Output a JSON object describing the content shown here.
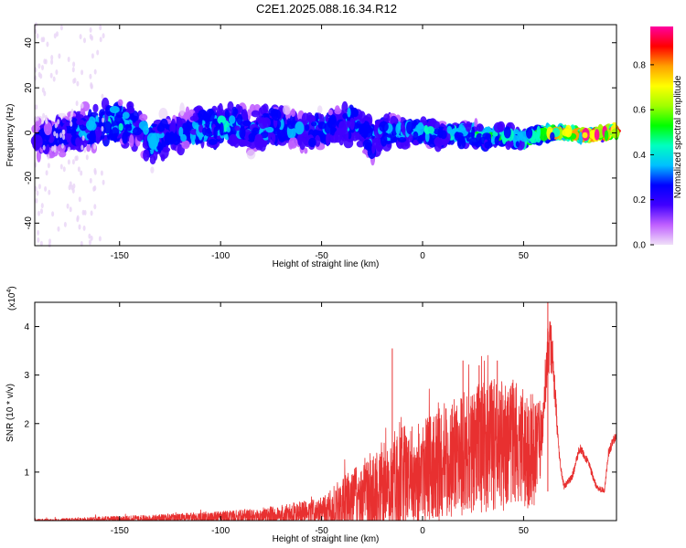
{
  "title": "C2E1.2025.088.16.34.R12",
  "chart_data": [
    {
      "type": "heatmap",
      "xlabel": "Height of straight line (km)",
      "ylabel": "Frequency (Hz)",
      "xlim": [
        -192,
        96
      ],
      "ylim": [
        -50,
        48
      ],
      "xticks": [
        -150,
        -100,
        -50,
        0,
        50
      ],
      "yticks": [
        -40,
        -20,
        0,
        20,
        40
      ],
      "colorbar": {
        "label": "Normalized spectral amplitude",
        "range": [
          0,
          0.97
        ],
        "ticks": [
          0.0,
          0.2,
          0.4,
          0.6,
          0.8
        ],
        "tick_labels": [
          "0.0",
          "0.2",
          "0.4",
          "0.6",
          "0.8"
        ],
        "colormap": [
          "#f0e0f8",
          "#c060ff",
          "#4000ff",
          "#0000ff",
          "#00c0ff",
          "#00ffc0",
          "#00ff00",
          "#a0ff00",
          "#ffff00",
          "#ffa000",
          "#ff0000",
          "#ff00a0"
        ]
      },
      "ridge": {
        "x": [
          -190,
          -175,
          -160,
          -150,
          -140,
          -135,
          -125,
          -110,
          -100,
          -95,
          -85,
          -75,
          -65,
          -55,
          -45,
          -35,
          -30,
          -25,
          -20,
          -10,
          0,
          10,
          20,
          30,
          40,
          50,
          60,
          70,
          80,
          90,
          95
        ],
        "center": [
          -3,
          0,
          3,
          5,
          2,
          -4,
          -1,
          2,
          3,
          4,
          1,
          3,
          2,
          1,
          3,
          5,
          2,
          -3,
          1,
          0,
          1,
          -1,
          0,
          -2,
          -1,
          -3,
          0,
          0,
          -1,
          0,
          1
        ],
        "spread": [
          10,
          10,
          11,
          12,
          10,
          14,
          9,
          10,
          11,
          12,
          10,
          11,
          9,
          9,
          10,
          11,
          10,
          13,
          8,
          7,
          7,
          6,
          6,
          6,
          5,
          4,
          3,
          2,
          2,
          2,
          2
        ],
        "peak_amplitude": [
          0.25,
          0.3,
          0.35,
          0.4,
          0.3,
          0.35,
          0.3,
          0.35,
          0.4,
          0.35,
          0.3,
          0.35,
          0.3,
          0.35,
          0.3,
          0.35,
          0.3,
          0.3,
          0.35,
          0.35,
          0.4,
          0.35,
          0.4,
          0.45,
          0.45,
          0.5,
          0.55,
          0.8,
          0.9,
          0.95,
          0.9
        ]
      }
    },
    {
      "type": "line",
      "xlabel": "Height of straight line (km)",
      "ylabel": "SNR (10 * v/v)",
      "y_multiplier": "(x10^4)",
      "color": "#e83030",
      "xlim": [
        -192,
        96
      ],
      "ylim": [
        0,
        4.5
      ],
      "xticks": [
        -150,
        -100,
        -50,
        0,
        50
      ],
      "yticks": [
        1,
        2,
        3,
        4
      ],
      "envelope": {
        "x": [
          -192,
          -180,
          -160,
          -140,
          -120,
          -100,
          -90,
          -80,
          -70,
          -60,
          -50,
          -45,
          -40,
          -35,
          -30,
          -25,
          -20,
          -15,
          -10,
          -5,
          0,
          5,
          10,
          15,
          20,
          25,
          30,
          35,
          40,
          45,
          50,
          55,
          58,
          60,
          62,
          64,
          66,
          68,
          70,
          74,
          78,
          82,
          86,
          90,
          92,
          96
        ],
        "base": [
          0.0,
          0.0,
          0.02,
          0.03,
          0.05,
          0.07,
          0.08,
          0.1,
          0.12,
          0.15,
          0.18,
          0.22,
          0.3,
          0.35,
          0.45,
          0.55,
          0.65,
          0.75,
          0.85,
          0.95,
          1.05,
          1.1,
          1.2,
          1.3,
          1.4,
          1.45,
          1.5,
          1.55,
          1.55,
          1.6,
          1.5,
          1.4,
          1.6,
          2.2,
          3.6,
          3.5,
          2.3,
          1.2,
          0.7,
          0.9,
          1.5,
          1.2,
          0.7,
          0.6,
          1.4,
          1.8
        ],
        "noise": [
          0.03,
          0.04,
          0.06,
          0.08,
          0.1,
          0.12,
          0.14,
          0.16,
          0.2,
          0.25,
          0.3,
          0.45,
          0.6,
          0.7,
          0.8,
          0.9,
          1.0,
          1.2,
          1.1,
          1.0,
          1.1,
          1.1,
          1.2,
          1.2,
          1.3,
          1.3,
          1.4,
          1.4,
          1.4,
          1.3,
          1.2,
          1.2,
          0.9,
          0.4,
          0.6,
          0.6,
          0.3,
          0.08,
          0.06,
          0.08,
          0.1,
          0.08,
          0.06,
          0.06,
          0.1,
          0.1
        ]
      },
      "peaks": [
        {
          "x": -15,
          "y": 3.55
        },
        {
          "x": 20,
          "y": 3.3
        },
        {
          "x": 28,
          "y": 3.2
        },
        {
          "x": 37,
          "y": 3.3
        },
        {
          "x": 62,
          "y": 4.5
        }
      ]
    }
  ]
}
